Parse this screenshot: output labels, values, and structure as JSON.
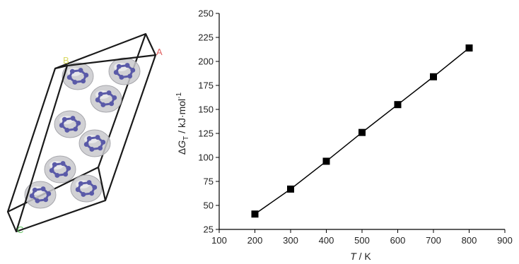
{
  "structure": {
    "cell_labels": {
      "a": "A",
      "b": "B",
      "c": "C"
    },
    "colors": {
      "cell_edge": "#1a1a1a",
      "ring": "#5a5aa8",
      "shell": "#c9c9cc",
      "label_a": "#e06060",
      "label_b": "#d8d860",
      "label_c": "#60c060"
    }
  },
  "chart_data": {
    "type": "line",
    "x": [
      200,
      300,
      400,
      500,
      600,
      700,
      800
    ],
    "y": [
      41,
      67,
      96,
      126,
      155,
      184,
      214
    ],
    "marker": "square",
    "xlabel": {
      "symbol": "T",
      "unit": " / K"
    },
    "ylabel": {
      "delta": "Δ",
      "symbol": "G",
      "sub": "T",
      "unit": " / kJ·mol",
      "sup": "-1"
    },
    "xlim": [
      100,
      900
    ],
    "ylim": [
      25,
      250
    ],
    "xticks": [
      100,
      200,
      300,
      400,
      500,
      600,
      700,
      800,
      900
    ],
    "yticks": [
      25,
      50,
      75,
      100,
      125,
      150,
      175,
      200,
      225,
      250
    ],
    "grid": false,
    "colors": {
      "line": "#000000",
      "marker": "#000000",
      "axis": "#000000"
    }
  }
}
